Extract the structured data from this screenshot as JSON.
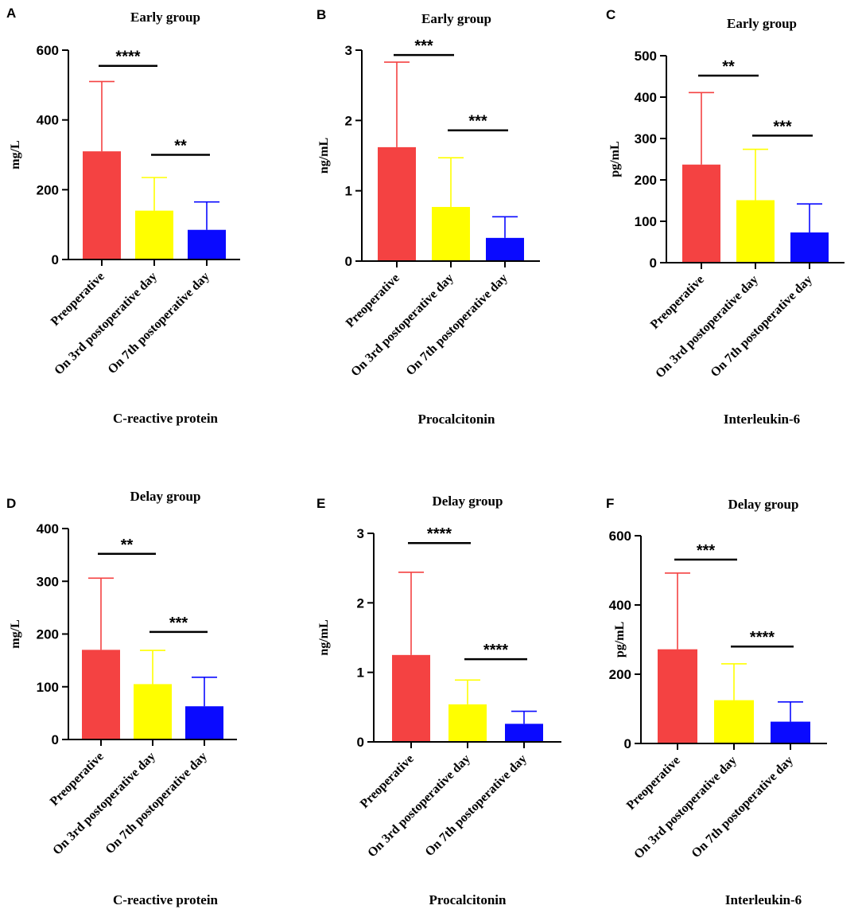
{
  "figure": {
    "colors": {
      "preoperative": "#f44242",
      "day3": "#ffff00",
      "day7": "#0a0aff",
      "axis": "#000000"
    },
    "categories": [
      "Preoperative",
      "On 3rd postoperative day",
      "On 7th postoperative day"
    ]
  },
  "chart_data": [
    {
      "panel": "A",
      "type": "bar",
      "title": "Early group",
      "xlabel": "C-reactive protein",
      "ylabel": "mg/L",
      "ylim": [
        0,
        600
      ],
      "yticks": [
        0,
        200,
        400,
        600
      ],
      "categories": [
        "Preoperative",
        "On 3rd postoperative day",
        "On 7th postoperative day"
      ],
      "values": [
        310,
        140,
        85
      ],
      "error": [
        200,
        95,
        80
      ],
      "significance": [
        {
          "label": "****",
          "between": [
            0,
            1
          ],
          "y": 555
        },
        {
          "label": "**",
          "between": [
            1,
            2
          ],
          "y": 300
        }
      ]
    },
    {
      "panel": "B",
      "type": "bar",
      "title": "Early group",
      "xlabel": "Procalcitonin",
      "ylabel": "ng/mL",
      "ylim": [
        0,
        3
      ],
      "yticks": [
        0,
        1,
        2,
        3
      ],
      "categories": [
        "Preoperative",
        "On 3rd postoperative day",
        "On 7th postoperative day"
      ],
      "values": [
        1.62,
        0.77,
        0.33
      ],
      "error": [
        1.21,
        0.7,
        0.3
      ],
      "significance": [
        {
          "label": "***",
          "between": [
            0,
            1
          ],
          "y": 2.93
        },
        {
          "label": "***",
          "between": [
            1,
            2
          ],
          "y": 1.86
        }
      ]
    },
    {
      "panel": "C",
      "type": "bar",
      "title": "Early group",
      "xlabel": "Interleukin-6",
      "ylabel": "pg/mL",
      "ylim": [
        0,
        500
      ],
      "yticks": [
        0,
        100,
        200,
        300,
        400,
        500
      ],
      "categories": [
        "Preoperative",
        "On 3rd postoperative day",
        "On 7th postoperative day"
      ],
      "values": [
        237,
        151,
        73
      ],
      "error": [
        174,
        123,
        69
      ],
      "significance": [
        {
          "label": "**",
          "between": [
            0,
            1
          ],
          "y": 452
        },
        {
          "label": "***",
          "between": [
            1,
            2
          ],
          "y": 307
        }
      ]
    },
    {
      "panel": "D",
      "type": "bar",
      "title": "Delay group",
      "xlabel": "C-reactive protein",
      "ylabel": "mg/L",
      "ylim": [
        0,
        400
      ],
      "yticks": [
        0,
        100,
        200,
        300,
        400
      ],
      "categories": [
        "Preoperative",
        "On 3rd postoperative day",
        "On 7th postoperative day"
      ],
      "values": [
        170,
        105,
        63
      ],
      "error": [
        136,
        64,
        55
      ],
      "significance": [
        {
          "label": "**",
          "between": [
            0,
            1
          ],
          "y": 352
        },
        {
          "label": "***",
          "between": [
            1,
            2
          ],
          "y": 204
        }
      ]
    },
    {
      "panel": "E",
      "type": "bar",
      "title": "Delay group",
      "xlabel": "Procalcitonin",
      "ylabel": "ng/mL",
      "ylim": [
        0,
        3
      ],
      "yticks": [
        0,
        1,
        2,
        3
      ],
      "categories": [
        "Preoperative",
        "On 3rd postoperative day",
        "On 7th postoperative day"
      ],
      "values": [
        1.25,
        0.54,
        0.26
      ],
      "error": [
        1.19,
        0.35,
        0.18
      ],
      "significance": [
        {
          "label": "****",
          "between": [
            0,
            1
          ],
          "y": 2.86
        },
        {
          "label": "****",
          "between": [
            1,
            2
          ],
          "y": 1.19
        }
      ]
    },
    {
      "panel": "F",
      "type": "bar",
      "title": "Delay group",
      "xlabel": "Interleukin-6",
      "ylabel": "pg/mL",
      "ylim": [
        0,
        600
      ],
      "yticks": [
        0,
        200,
        400,
        600
      ],
      "categories": [
        "Preoperative",
        "On 3rd postoperative day",
        "On 7th postoperative day"
      ],
      "values": [
        272,
        125,
        63
      ],
      "error": [
        220,
        105,
        57
      ],
      "significance": [
        {
          "label": "***",
          "between": [
            0,
            1
          ],
          "y": 531
        },
        {
          "label": "****",
          "between": [
            1,
            2
          ],
          "y": 280
        }
      ]
    }
  ]
}
